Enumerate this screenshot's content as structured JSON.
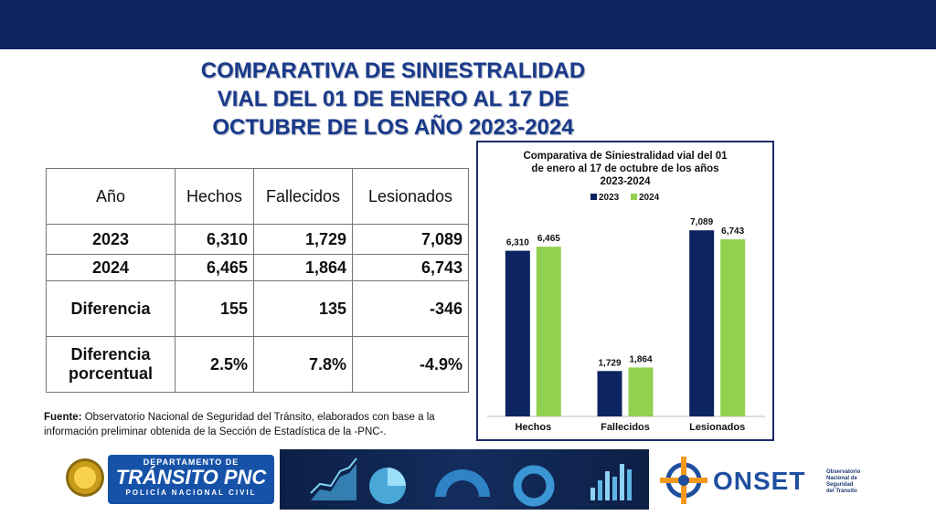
{
  "title": {
    "lines": [
      "COMPARATIVA DE SINIESTRALIDAD",
      "VIAL DEL 01 DE ENERO AL 17 DE",
      "OCTUBRE DE LOS AÑO 2023-2024"
    ]
  },
  "table": {
    "headers": [
      "Año",
      "Hechos",
      "Fallecidos",
      "Lesionados"
    ],
    "rows": [
      {
        "label": "2023",
        "hechos": "6,310",
        "fallecidos": "1,729",
        "lesionados": "7,089"
      },
      {
        "label": "2024",
        "hechos": "6,465",
        "fallecidos": "1,864",
        "lesionados": "6,743"
      },
      {
        "label": "Diferencia",
        "hechos": "155",
        "fallecidos": "135",
        "lesionados": "-346"
      },
      {
        "label_line1": "Diferencia",
        "label_line2": "porcentual",
        "hechos": "2.5%",
        "fallecidos": "7.8%",
        "lesionados": "-4.9%"
      }
    ]
  },
  "source": {
    "label": "Fuente:",
    "text": " Observatorio Nacional de Seguridad del Tránsito, elaborados con base a la información preliminar obtenida de la Sección de Estadística de la -PNC-."
  },
  "chart_data": {
    "type": "bar",
    "title_lines": [
      "Comparativa de Siniestralidad vial del 01",
      "de enero al 17 de octubre de los años",
      "2023-2024"
    ],
    "categories": [
      "Hechos",
      "Fallecidos",
      "Lesionados"
    ],
    "series": [
      {
        "name": "2023",
        "values": [
          6310,
          1729,
          7089
        ],
        "labels": [
          "6,310",
          "1,729",
          "7,089"
        ],
        "color": "#0c2461"
      },
      {
        "name": "2024",
        "values": [
          6465,
          1864,
          6743
        ],
        "labels": [
          "6,465",
          "1,864",
          "6,743"
        ],
        "color": "#92d050"
      }
    ],
    "ylim": [
      0,
      8000
    ],
    "legend": "top",
    "grid": false
  },
  "footer": {
    "pnc_top": "DEPARTAMENTO DE",
    "pnc_main": "TRÁNSITO PNC",
    "pnc_bottom": "POLICÍA NACIONAL CIVIL",
    "onset_word": "ONSET",
    "onset_sub": [
      "Observatorio",
      "Nacional de",
      "Seguridad",
      "del Tránsito"
    ]
  },
  "colors": {
    "header_bar": "#0c2461",
    "title": "#1a3a8a",
    "pnc_blue": "#1652a8",
    "onset_orange": "#f39a1e"
  }
}
